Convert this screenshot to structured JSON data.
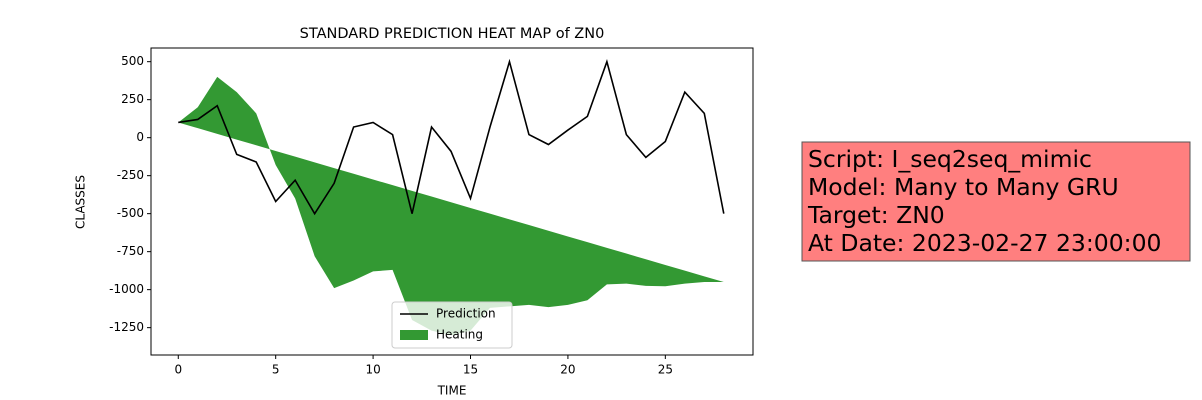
{
  "chart_data": {
    "type": "line",
    "title": "STANDARD PREDICTION HEAT MAP of ZN0",
    "xlabel": "TIME",
    "ylabel": "CLASSES",
    "x": [
      0,
      1,
      2,
      3,
      4,
      5,
      6,
      7,
      8,
      9,
      10,
      11,
      12,
      13,
      14,
      15,
      16,
      17,
      18,
      19,
      20,
      21,
      22,
      23,
      24,
      25,
      26,
      27,
      28
    ],
    "series": [
      {
        "name": "Prediction",
        "color": "#000000",
        "values": [
          100,
          120,
          210,
          -110,
          -160,
          -420,
          -280,
          -500,
          -300,
          70,
          100,
          20,
          -500,
          70,
          -90,
          -400,
          70,
          500,
          20,
          -45,
          50,
          140,
          500,
          20,
          -130,
          -25,
          300,
          160,
          -500
        ]
      },
      {
        "name": "Heating",
        "color": "#339933",
        "fill": true,
        "values": [
          100,
          200,
          400,
          300,
          160,
          -180,
          -400,
          -780,
          -990,
          -940,
          -880,
          -870,
          -1200,
          -1270,
          -1300,
          -1270,
          -1120,
          -1110,
          -1100,
          -1115,
          -1100,
          -1070,
          -965,
          -960,
          -975,
          -978,
          -960,
          -950,
          -950
        ],
        "base": [
          100,
          62.5,
          25,
          -12.5,
          -50,
          -87.5,
          -125,
          -162.5,
          -200,
          -237.5,
          -275,
          -312.5,
          -350,
          -387.5,
          -425,
          -462.5,
          -500,
          -537.5,
          -575,
          -612.5,
          -650,
          -687.5,
          -725,
          -762.5,
          -800,
          -837.5,
          -875,
          -912.5,
          -950
        ]
      }
    ],
    "xlim": [
      -1.4,
      29.5
    ],
    "xticks": [
      0,
      5,
      10,
      15,
      20,
      25
    ],
    "ylim": [
      -1430,
      590
    ],
    "yticks": [
      500,
      250,
      0,
      -250,
      -500,
      -750,
      -1000,
      -1250
    ],
    "legend": "lower center",
    "annotation": {
      "lines": [
        "Script: I_seq2seq_mimic",
        "Model: Many to Many GRU",
        "Target: ZN0",
        "At Date: 2023-02-27 23:00:00"
      ],
      "color": "#ff7f7f"
    }
  }
}
